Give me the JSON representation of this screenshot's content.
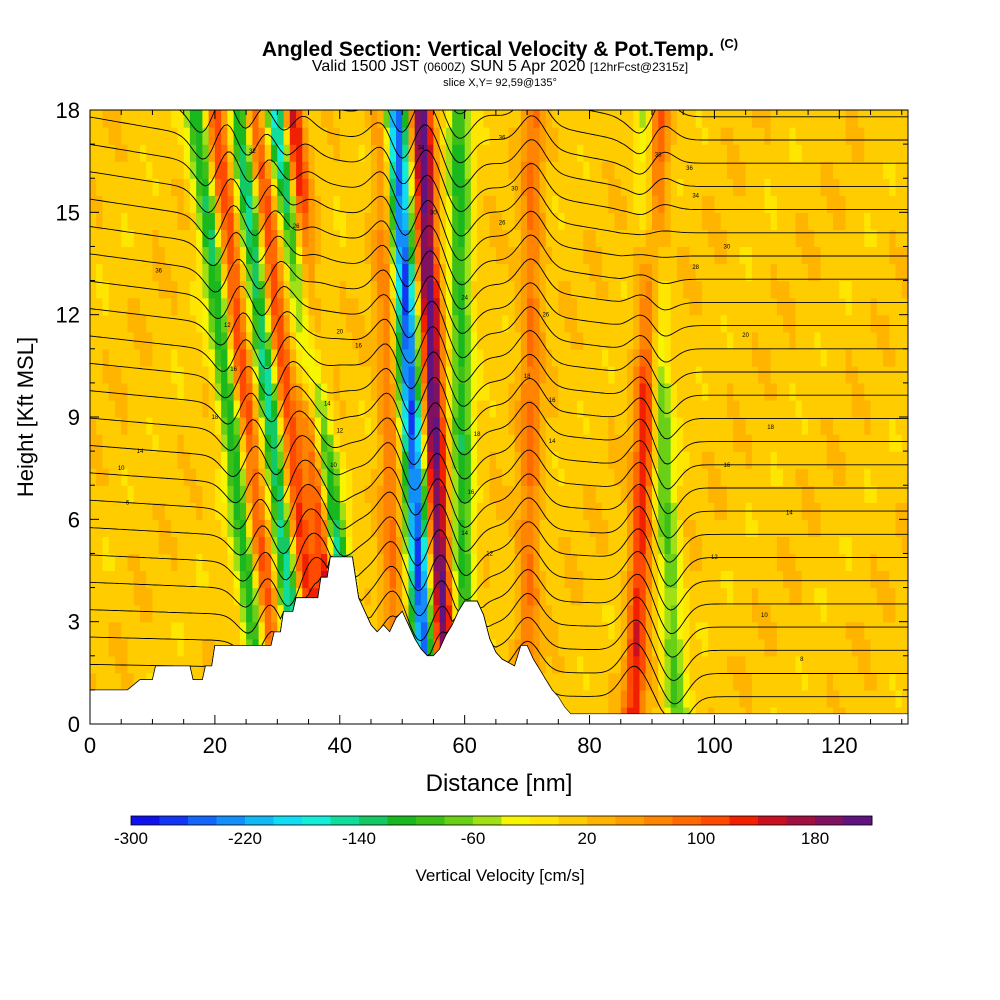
{
  "header": {
    "title": "Angled Section: Vertical Velocity & Pot.Temp.",
    "title_mark": "(C)",
    "valid_prefix": "Valid 1500 JST",
    "valid_utc": "(0600Z)",
    "valid_date": "SUN 5 Apr 2020",
    "forecast": "[12hrFcst@2315z]",
    "slice": "slice X,Y= 92,59@135°"
  },
  "chart_data": {
    "type": "heatmap",
    "xlabel": "Distance [nm]",
    "ylabel": "Height [Kft MSL]",
    "xlim": [
      0,
      131
    ],
    "ylim": [
      0,
      18
    ],
    "xticks": [
      0,
      20,
      40,
      60,
      80,
      100,
      120
    ],
    "yticks": [
      0,
      3,
      6,
      9,
      12,
      15,
      18
    ],
    "colorbar": {
      "label": "Vertical Velocity [cm/s]",
      "range": [
        -300,
        220
      ],
      "step": 20,
      "tick_values": [
        -300,
        -220,
        -140,
        -60,
        20,
        100,
        180
      ],
      "tick_labels": [
        "-300",
        "-220",
        "-140",
        "-60",
        "20",
        "100",
        "180"
      ],
      "colors": [
        "#1010ee",
        "#1236f4",
        "#1465fa",
        "#128ffa",
        "#10b8f4",
        "#10dcf2",
        "#12eed8",
        "#10dc9c",
        "#14c864",
        "#18b81e",
        "#3cc018",
        "#6ad016",
        "#a0e014",
        "#f6f600",
        "#ffe600",
        "#ffcc00",
        "#ffb400",
        "#ff9c00",
        "#ff8400",
        "#ff6a00",
        "#ff4a00",
        "#f02000",
        "#c81020",
        "#a01040",
        "#801060",
        "#601480"
      ]
    },
    "features": {
      "terrain_height_kft": [
        [
          0,
          1
        ],
        [
          6,
          1
        ],
        [
          8,
          1.3
        ],
        [
          10,
          1.3
        ],
        [
          10.5,
          1.7
        ],
        [
          16,
          1.7
        ],
        [
          16.5,
          1.3
        ],
        [
          18,
          1.3
        ],
        [
          18.5,
          1.7
        ],
        [
          19.5,
          1.7
        ],
        [
          20,
          2.3
        ],
        [
          29,
          2.3
        ],
        [
          29.5,
          2.7
        ],
        [
          30.5,
          2.7
        ],
        [
          31,
          3.3
        ],
        [
          32.5,
          3.3
        ],
        [
          33,
          3.7
        ],
        [
          36.5,
          3.7
        ],
        [
          37,
          4.3
        ],
        [
          38,
          4.3
        ],
        [
          38.5,
          4.9
        ],
        [
          42,
          4.9
        ],
        [
          42.5,
          4.3
        ],
        [
          43,
          3.7
        ],
        [
          44,
          3.3
        ],
        [
          45,
          2.9
        ],
        [
          46,
          2.7
        ],
        [
          47,
          2.9
        ],
        [
          48,
          2.7
        ],
        [
          49,
          3.1
        ],
        [
          50,
          3.3
        ],
        [
          51,
          2.9
        ],
        [
          52,
          2.5
        ],
        [
          53,
          2.2
        ],
        [
          54,
          2.0
        ],
        [
          55,
          2.0
        ],
        [
          56,
          2.2
        ],
        [
          57,
          2.6
        ],
        [
          58,
          2.9
        ],
        [
          59,
          3.3
        ],
        [
          60,
          3.6
        ],
        [
          62,
          3.6
        ],
        [
          63,
          3.2
        ],
        [
          64,
          2.5
        ],
        [
          65,
          2.1
        ],
        [
          66,
          1.9
        ],
        [
          68,
          1.7
        ],
        [
          69,
          2.3
        ],
        [
          70,
          2.3
        ],
        [
          71,
          1.9
        ],
        [
          72,
          1.6
        ],
        [
          73,
          1.3
        ],
        [
          74,
          1.0
        ],
        [
          75,
          0.8
        ],
        [
          76,
          0.5
        ],
        [
          77,
          0.3
        ],
        [
          131,
          0.3
        ]
      ],
      "updraft_cores": [
        {
          "x_low": 30,
          "x_high": 20,
          "w": 110
        },
        {
          "x_low": 37,
          "x_high": 26,
          "w": 120
        },
        {
          "x_low": 40,
          "x_high": 32,
          "w": 190
        },
        {
          "x_low": 49,
          "x_high": 47,
          "w": 70
        },
        {
          "x_low": 57,
          "x_high": 53,
          "w": 200
        },
        {
          "x_low": 70,
          "x_high": 71,
          "w": 70
        },
        {
          "x_low": 87,
          "x_high": 91,
          "w": 120
        }
      ],
      "downdraft_cores": [
        {
          "x_low": 28,
          "x_high": 17,
          "w": -140
        },
        {
          "x_low": 34,
          "x_high": 24,
          "w": -170
        },
        {
          "x_low": 43,
          "x_high": 30,
          "w": -230
        },
        {
          "x_low": 54,
          "x_high": 49,
          "w": -280
        },
        {
          "x_low": 60,
          "x_high": 59,
          "w": -120
        },
        {
          "x_low": 94,
          "x_high": 89,
          "w": -90
        }
      ],
      "theta_contour_labels": [
        {
          "x": 6,
          "y": 6.5,
          "text": "6"
        },
        {
          "x": 5,
          "y": 7.5,
          "text": "10"
        },
        {
          "x": 8,
          "y": 8.0,
          "text": "14"
        },
        {
          "x": 20,
          "y": 9.0,
          "text": "18"
        },
        {
          "x": 23,
          "y": 10.4,
          "text": "16"
        },
        {
          "x": 22,
          "y": 11.7,
          "text": "12"
        },
        {
          "x": 11,
          "y": 13.3,
          "text": "36"
        },
        {
          "x": 26,
          "y": 16.8,
          "text": "32"
        },
        {
          "x": 33,
          "y": 14.6,
          "text": "26"
        },
        {
          "x": 40,
          "y": 11.5,
          "text": "20"
        },
        {
          "x": 43,
          "y": 11.1,
          "text": "16"
        },
        {
          "x": 38,
          "y": 9.4,
          "text": "14"
        },
        {
          "x": 40,
          "y": 8.6,
          "text": "12"
        },
        {
          "x": 39,
          "y": 7.6,
          "text": "10"
        },
        {
          "x": 53,
          "y": 16.9,
          "text": "34"
        },
        {
          "x": 55,
          "y": 15.0,
          "text": "30"
        },
        {
          "x": 66,
          "y": 17.2,
          "text": "36"
        },
        {
          "x": 68,
          "y": 15.7,
          "text": "30"
        },
        {
          "x": 66,
          "y": 14.7,
          "text": "26"
        },
        {
          "x": 60,
          "y": 12.5,
          "text": "24"
        },
        {
          "x": 62,
          "y": 8.5,
          "text": "18"
        },
        {
          "x": 61,
          "y": 6.8,
          "text": "16"
        },
        {
          "x": 60,
          "y": 5.6,
          "text": "14"
        },
        {
          "x": 64,
          "y": 5.0,
          "text": "12"
        },
        {
          "x": 73,
          "y": 12.0,
          "text": "26"
        },
        {
          "x": 70,
          "y": 10.2,
          "text": "18"
        },
        {
          "x": 74,
          "y": 9.5,
          "text": "16"
        },
        {
          "x": 74,
          "y": 8.3,
          "text": "14"
        },
        {
          "x": 91,
          "y": 16.7,
          "text": "38"
        },
        {
          "x": 96,
          "y": 16.3,
          "text": "36"
        },
        {
          "x": 97,
          "y": 15.5,
          "text": "34"
        },
        {
          "x": 102,
          "y": 14.0,
          "text": "30"
        },
        {
          "x": 97,
          "y": 13.4,
          "text": "28"
        },
        {
          "x": 105,
          "y": 11.4,
          "text": "20"
        },
        {
          "x": 109,
          "y": 8.7,
          "text": "18"
        },
        {
          "x": 102,
          "y": 7.6,
          "text": "16"
        },
        {
          "x": 112,
          "y": 6.2,
          "text": "14"
        },
        {
          "x": 100,
          "y": 4.9,
          "text": "12"
        },
        {
          "x": 108,
          "y": 3.2,
          "text": "10"
        },
        {
          "x": 114,
          "y": 1.9,
          "text": "8"
        }
      ]
    }
  }
}
